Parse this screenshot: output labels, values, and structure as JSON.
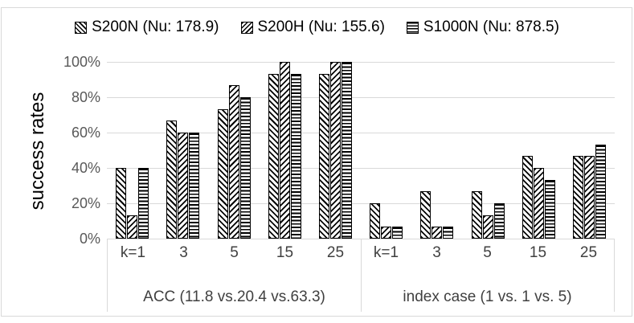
{
  "chart_data": {
    "type": "bar",
    "title": "",
    "ylabel": "success rates",
    "ylim": [
      0,
      100
    ],
    "yticks": [
      "0%",
      "20%",
      "40%",
      "60%",
      "80%",
      "100%"
    ],
    "grid": true,
    "legend_position": "top",
    "series_meta": [
      {
        "name": "S200N (Nu: 178.9)",
        "pattern": "diagonal-down-hatch",
        "fill": "#ffffff",
        "stroke": "#000000"
      },
      {
        "name": "S200H (Nu: 155.6)",
        "pattern": "diagonal-up-hatch",
        "fill": "#ffffff",
        "stroke": "#000000"
      },
      {
        "name": "S1000N (Nu: 878.5)",
        "pattern": "horizontal-lines-hatch",
        "fill": "#ffffff",
        "stroke": "#000000"
      }
    ],
    "groups": [
      {
        "label": "ACC (11.8 vs.20.4 vs.63.3)",
        "categories": [
          "k=1",
          "3",
          "5",
          "15",
          "25"
        ],
        "series": [
          {
            "name": "S200N (Nu: 178.9)",
            "values": [
              40,
              66.7,
              73.3,
              93.3,
              93.3
            ]
          },
          {
            "name": "S200H (Nu: 155.6)",
            "values": [
              13.3,
              60,
              86.7,
              100,
              100
            ]
          },
          {
            "name": "S1000N (Nu: 878.5)",
            "values": [
              40,
              60,
              80,
              93.3,
              100
            ]
          }
        ]
      },
      {
        "label": "index case (1 vs. 1 vs. 5)",
        "categories": [
          "k=1",
          "3",
          "5",
          "15",
          "25"
        ],
        "series": [
          {
            "name": "S200N (Nu: 178.9)",
            "values": [
              20,
              26.7,
              26.7,
              46.7,
              46.7
            ]
          },
          {
            "name": "S200H (Nu: 155.6)",
            "values": [
              6.7,
              6.7,
              13.3,
              40,
              46.7
            ]
          },
          {
            "name": "S1000N (Nu: 878.5)",
            "values": [
              6.7,
              6.7,
              20,
              33.3,
              53.3
            ]
          }
        ]
      }
    ],
    "colors": {
      "gridline": "#D9D9D9",
      "axis_line": "#D9D9D9",
      "chart_border": "#D9D9D9",
      "ytick_text": "#595959",
      "category_text": "#404040",
      "legend_text": "#000000",
      "axis_title_text": "#000000",
      "background": "#ffffff"
    }
  }
}
